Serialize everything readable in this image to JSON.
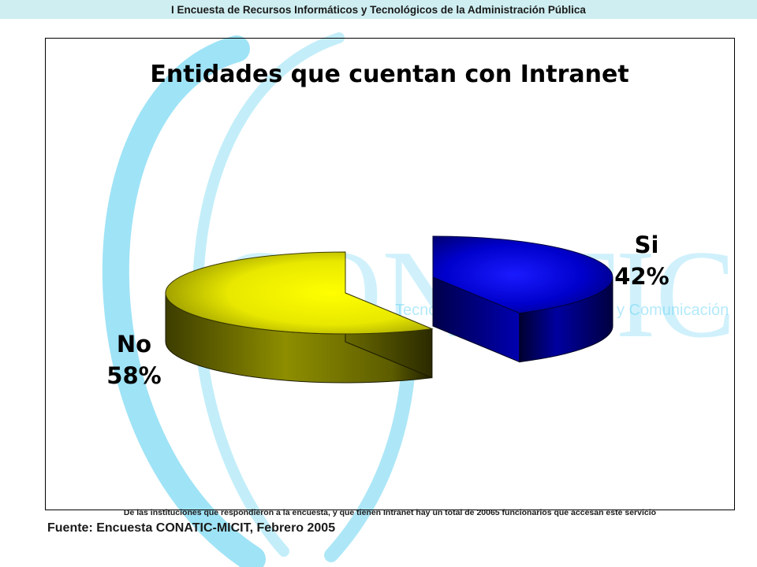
{
  "header": {
    "banner_title": "I Encuesta de Recursos Informáticos y Tecnológicos de la Administración Pública"
  },
  "watermark": {
    "logo_text": "CONATIC",
    "tagline_start": "Tecno",
    "tagline_end": "y Comunicación",
    "color": "#5ad0f5"
  },
  "chart_data": {
    "type": "pie",
    "title": "Entidades que cuentan con Intranet",
    "categories": [
      "Si",
      "No"
    ],
    "values": [
      42,
      58
    ],
    "value_labels": [
      "42%",
      "58%"
    ],
    "colors": [
      "#0000dd",
      "#ffff00"
    ],
    "exploded": true,
    "three_d": true,
    "legend": "none"
  },
  "footnote": "De las instituciones que respondieron a la encuesta, y que tienen Intranet hay un total de 20065 funcionarios que accesan este servicio",
  "source": "Fuente: Encuesta CONATIC-MICIT, Febrero 2005"
}
